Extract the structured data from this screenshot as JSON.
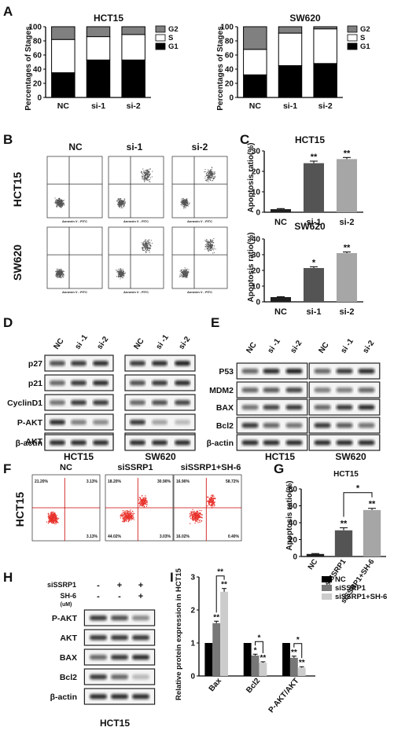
{
  "panel_letters": [
    "A",
    "B",
    "C",
    "D",
    "E",
    "F",
    "G",
    "H",
    "I"
  ],
  "chart_data": [
    {
      "id": "A-HCT15",
      "type": "bar",
      "stacked": true,
      "title": "HCT15",
      "ylabel": "Percentages of Stages",
      "categories": [
        "NC",
        "si-1",
        "si-2"
      ],
      "ylim": [
        0,
        100
      ],
      "yticks": [
        0,
        20,
        40,
        60,
        80,
        100
      ],
      "series": [
        {
          "name": "G1",
          "color": "#000000",
          "values": [
            35,
            53,
            53
          ]
        },
        {
          "name": "S",
          "color": "#ffffff",
          "values": [
            47,
            33,
            36
          ]
        },
        {
          "name": "G2",
          "color": "#808080",
          "values": [
            18,
            14,
            11
          ]
        }
      ],
      "legend_order": [
        "G2",
        "S",
        "G1"
      ]
    },
    {
      "id": "A-SW620",
      "type": "bar",
      "stacked": true,
      "title": "SW620",
      "ylabel": "Percentages of Stages",
      "categories": [
        "NC",
        "si-1",
        "si-2"
      ],
      "ylim": [
        0,
        100
      ],
      "yticks": [
        0,
        20,
        40,
        60,
        80,
        100
      ],
      "series": [
        {
          "name": "G1",
          "color": "#000000",
          "values": [
            32,
            45,
            48
          ]
        },
        {
          "name": "S",
          "color": "#ffffff",
          "values": [
            36,
            46,
            49
          ]
        },
        {
          "name": "G2",
          "color": "#808080",
          "values": [
            32,
            9,
            3
          ]
        }
      ],
      "legend_order": [
        "G2",
        "S",
        "G1"
      ]
    },
    {
      "id": "C-HCT15",
      "type": "bar",
      "title": "HCT15",
      "ylabel": "Apoptosis ratio(%)",
      "categories": [
        "NC",
        "si-1",
        "si-2"
      ],
      "ylim": [
        0,
        30
      ],
      "yticks": [
        0,
        10,
        20,
        30
      ],
      "values": [
        1.5,
        24,
        26
      ],
      "errors": [
        0.3,
        1,
        0.8
      ],
      "colors": [
        "#1e1e1e",
        "#545454",
        "#a6a6a6"
      ],
      "annotations": [
        "",
        "**",
        "**"
      ]
    },
    {
      "id": "C-SW620",
      "type": "bar",
      "title": "SW620",
      "ylabel": "Apoptosis ratio(%)",
      "categories": [
        "NC",
        "si-1",
        "si-2"
      ],
      "ylim": [
        0,
        40
      ],
      "yticks": [
        0,
        10,
        20,
        30,
        40
      ],
      "values": [
        3,
        21.5,
        31
      ],
      "errors": [
        0.3,
        0.8,
        0.7
      ],
      "colors": [
        "#1e1e1e",
        "#545454",
        "#a6a6a6"
      ],
      "annotations": [
        "",
        "*",
        "**"
      ]
    },
    {
      "id": "G",
      "type": "bar",
      "title": "HCT15",
      "ylabel": "Apoptosis ratio(%)",
      "categories": [
        "NC",
        "siSSRP1",
        "siSSRP1+SH-6"
      ],
      "ylim": [
        0,
        80
      ],
      "yticks": [
        0,
        20,
        40,
        60,
        80
      ],
      "values": [
        3,
        31,
        55
      ],
      "errors": [
        0.5,
        3,
        2
      ],
      "colors": [
        "#1e1e1e",
        "#545454",
        "#a6a6a6"
      ],
      "annotations": [
        "",
        "**",
        "**"
      ],
      "bracket": {
        "from": "siSSRP1",
        "to": "siSSRP1+SH-6",
        "label": "*"
      }
    },
    {
      "id": "I",
      "type": "bar",
      "grouped": true,
      "ylabel": "Relative protein expression in HCT15",
      "categories": [
        "Bax",
        "Bcl2",
        "P-AKT/AKT"
      ],
      "ylim": [
        0,
        3
      ],
      "yticks": [
        0,
        1,
        2,
        3
      ],
      "series": [
        {
          "name": "NC",
          "color": "#000000",
          "values": [
            1,
            1,
            1
          ],
          "errors": [
            0,
            0,
            0
          ],
          "annotations": [
            "",
            "",
            ""
          ]
        },
        {
          "name": "siSSRP1",
          "color": "#777777",
          "values": [
            1.6,
            0.62,
            0.55
          ],
          "errors": [
            0.06,
            0.04,
            0.05
          ],
          "annotations": [
            "**",
            "*",
            "**"
          ]
        },
        {
          "name": "siSSRP1+SH-6",
          "color": "#cccccc",
          "values": [
            2.55,
            0.4,
            0.25
          ],
          "errors": [
            0.1,
            0.03,
            0.03
          ],
          "annotations": [
            "**",
            "**",
            "**"
          ]
        }
      ],
      "brackets": [
        {
          "group": "Bax",
          "label": "**"
        },
        {
          "group": "Bcl2",
          "label": "*"
        },
        {
          "group": "P-AKT/AKT",
          "label": "*"
        }
      ]
    }
  ],
  "panel_B": {
    "columns": [
      "NC",
      "si-1",
      "si-2"
    ],
    "rows": [
      "HCT15",
      "SW620"
    ],
    "axis_label": "Annexin V - FITC"
  },
  "panel_D": {
    "lanes": [
      "NC",
      "si -1",
      "si-2",
      "NC",
      "si -1",
      "si-2"
    ],
    "rows": [
      "p27",
      "p21",
      "CyclinD1",
      "P-AKT",
      "AKT",
      "β-actin"
    ],
    "groups": [
      "HCT15",
      "SW620"
    ]
  },
  "panel_E": {
    "lanes": [
      "NC",
      "si -1",
      "si-2",
      "NC",
      "si -1",
      "si-2"
    ],
    "rows": [
      "P53",
      "MDM2",
      "BAX",
      "Bcl2",
      "β-actin"
    ],
    "groups": [
      "HCT15",
      "SW620"
    ]
  },
  "panel_F": {
    "columns": [
      "NC",
      "siSSRP1",
      "siSSRP1+SH-6"
    ],
    "row_label": "HCT15",
    "quadrants": [
      {
        "ul": "21.20%",
        "ur": "3.13%",
        "ll": "",
        "lr": "3.13%"
      },
      {
        "ul": "18.20%",
        "ur": "30.90%",
        "ll": "44.02%",
        "lr": "3.03%"
      },
      {
        "ul": "16.90%",
        "ur": "58.72%",
        "ll": "16.02%",
        "lr": "0.40%"
      }
    ]
  },
  "panel_H": {
    "conditions": [
      {
        "label": "siSSRP1",
        "marks": [
          "-",
          "+",
          "+"
        ]
      },
      {
        "label": "SH-6",
        "unit": "(uM)",
        "marks": [
          "-",
          "-",
          "+"
        ]
      }
    ],
    "rows": [
      "P-AKT",
      "AKT",
      "BAX",
      "Bcl2",
      "β-actin"
    ],
    "group": "HCT15"
  }
}
